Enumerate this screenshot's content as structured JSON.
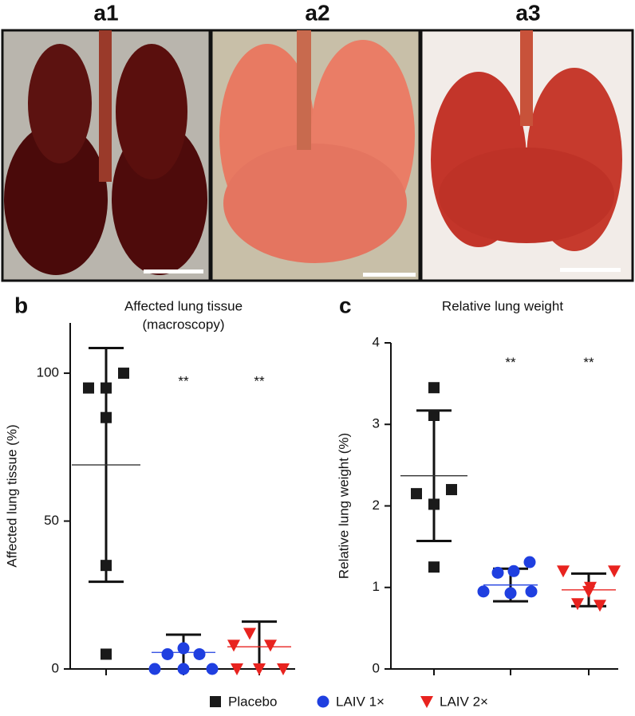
{
  "photos": [
    {
      "label": "a1"
    },
    {
      "label": "a2"
    },
    {
      "label": "a3"
    }
  ],
  "legend": [
    {
      "name": "Placebo",
      "color": "#1a1a1a",
      "marker": "square"
    },
    {
      "name": "LAIV 1×",
      "color": "#1f3fe0",
      "marker": "circle"
    },
    {
      "name": "LAIV 2×",
      "color": "#e8231f",
      "marker": "triangle"
    }
  ],
  "chart_data": [
    {
      "type": "scatter",
      "panel": "b",
      "title": [
        "Affected lung tissue",
        "(macroscopy)"
      ],
      "y_label": "Affected lung tissue (%)",
      "categories": [
        null,
        null,
        null
      ],
      "ylim": [
        0,
        117
      ],
      "yticks": [
        0,
        50,
        100
      ],
      "series": [
        {
          "values": [
            95,
            95,
            100,
            85,
            35,
            5
          ],
          "mean": 69,
          "error": 39.5
        },
        {
          "values": [
            5,
            7,
            5,
            0,
            0,
            0
          ],
          "mean": 5.6,
          "error": 6
        },
        {
          "values": [
            12,
            8,
            8,
            0,
            0,
            0
          ],
          "mean": 7.5,
          "error": 8.5
        }
      ],
      "annotations": [
        {
          "text": "**",
          "category": 1
        },
        {
          "text": "**",
          "category": 2
        }
      ]
    },
    {
      "type": "scatter",
      "panel": "c",
      "title": [
        "Relative lung weight"
      ],
      "y_label": "Relative lung weight (%)",
      "categories": [
        null,
        null,
        null
      ],
      "ylim": [
        0,
        4
      ],
      "yticks": [
        0,
        1,
        2,
        3,
        4
      ],
      "series": [
        {
          "values": [
            3.45,
            3.11,
            2.15,
            2.2,
            2.02,
            1.25
          ],
          "mean": 2.37,
          "error": 0.8
        },
        {
          "values": [
            1.31,
            1.18,
            1.2,
            0.95,
            0.95,
            0.93
          ],
          "mean": 1.03,
          "error": 0.2
        },
        {
          "values": [
            1.2,
            1.2,
            1.0,
            0.8,
            0.78,
            0.95
          ],
          "mean": 0.97,
          "error": 0.2
        }
      ],
      "annotations": [
        {
          "text": "**",
          "category": 1
        },
        {
          "text": "**",
          "category": 2
        }
      ]
    }
  ]
}
